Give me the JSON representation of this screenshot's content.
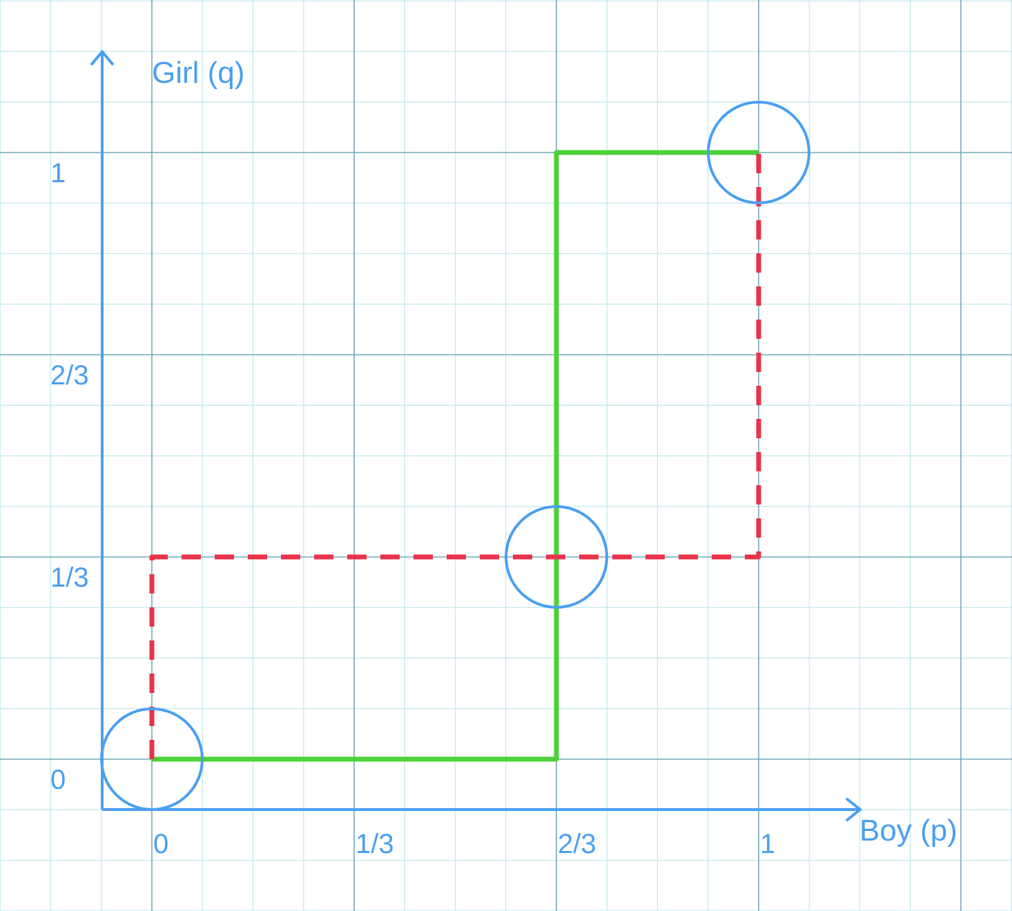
{
  "chart_data": {
    "type": "line",
    "title": "",
    "xlabel": "Boy (p)",
    "ylabel": "Girl (q)",
    "xlim": [
      0,
      1
    ],
    "ylim": [
      0,
      1
    ],
    "grid": true,
    "x_ticks": [
      {
        "value": 0,
        "label": "0"
      },
      {
        "value": 0.3333,
        "label": "1/3"
      },
      {
        "value": 0.6667,
        "label": "2/3"
      },
      {
        "value": 1,
        "label": "1"
      }
    ],
    "y_ticks": [
      {
        "value": 0,
        "label": "0"
      },
      {
        "value": 0.3333,
        "label": "1/3"
      },
      {
        "value": 0.6667,
        "label": "2/3"
      },
      {
        "value": 1,
        "label": "1"
      }
    ],
    "series": [
      {
        "style": "solid",
        "color": "#4cd137",
        "points": [
          [
            0,
            0
          ],
          [
            0.6667,
            0
          ],
          [
            0.6667,
            1
          ],
          [
            1,
            1
          ]
        ]
      },
      {
        "style": "dashed",
        "color": "#e8334a",
        "points": [
          [
            0,
            0
          ],
          [
            0,
            0.3333
          ],
          [
            1,
            0.3333
          ],
          [
            1,
            1
          ]
        ]
      }
    ],
    "highlighted_points": [
      {
        "x": 0,
        "y": 0
      },
      {
        "x": 0.6667,
        "y": 0.3333
      },
      {
        "x": 1,
        "y": 1
      }
    ],
    "colors": {
      "axis": "#4a9ff0",
      "grid_minor": "#bfe9ec",
      "grid_major": "#6fa8b8"
    }
  }
}
